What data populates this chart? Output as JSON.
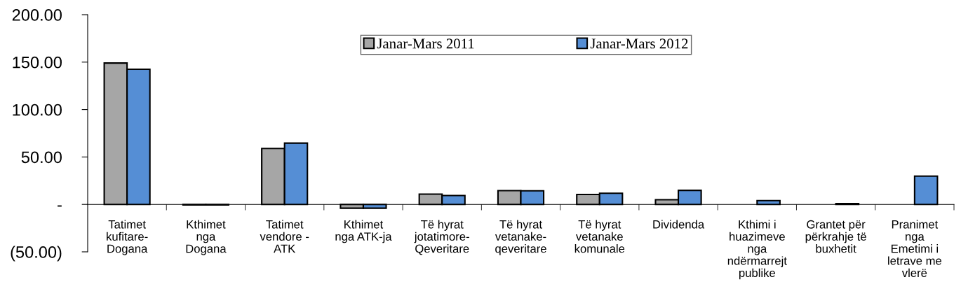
{
  "chart_data": {
    "type": "bar",
    "categories": [
      "Tatimet\nkufitare-\nDogana",
      "Kthimet\nnga\nDogana",
      "Tatimet\nvendore -\nATK",
      "Kthimet\nnga ATK-ja",
      "Të hyrat\njotatimore-\nQeveritare",
      "Të hyrat\nvetanake-\nqeveritare",
      "Të hyrat\nvetanake\nkomunale",
      "Dividenda",
      "Kthimi i\nhuazimeve\nnga\nndërmarrejt\npublike",
      "Grantet për\npërkrahje të\nbuxhetit",
      "Pranimet\nnga\nEmetimi i\nletrave me\nvlerë"
    ],
    "series": [
      {
        "name": "Janar-Mars 2011",
        "color": "#a6a6a6",
        "values": [
          149,
          -0.5,
          59,
          -4,
          10.8,
          14.5,
          10.5,
          5,
          null,
          null,
          null
        ]
      },
      {
        "name": "Janar-Mars 2012",
        "color": "#558ed5",
        "values": [
          142.5,
          -0.5,
          64.6,
          -4,
          9.4,
          14.3,
          11.8,
          14.8,
          4,
          0.8,
          29.8
        ]
      }
    ],
    "ylim": [
      -50,
      200
    ],
    "yticks": [
      {
        "value": -50,
        "label": "(50.00)"
      },
      {
        "value": 0,
        "label": "-"
      },
      {
        "value": 50,
        "label": "50.00"
      },
      {
        "value": 100,
        "label": "100.00"
      },
      {
        "value": 150,
        "label": "150.00"
      },
      {
        "value": 200,
        "label": "200.00"
      }
    ],
    "legend": "top",
    "grid": false
  }
}
